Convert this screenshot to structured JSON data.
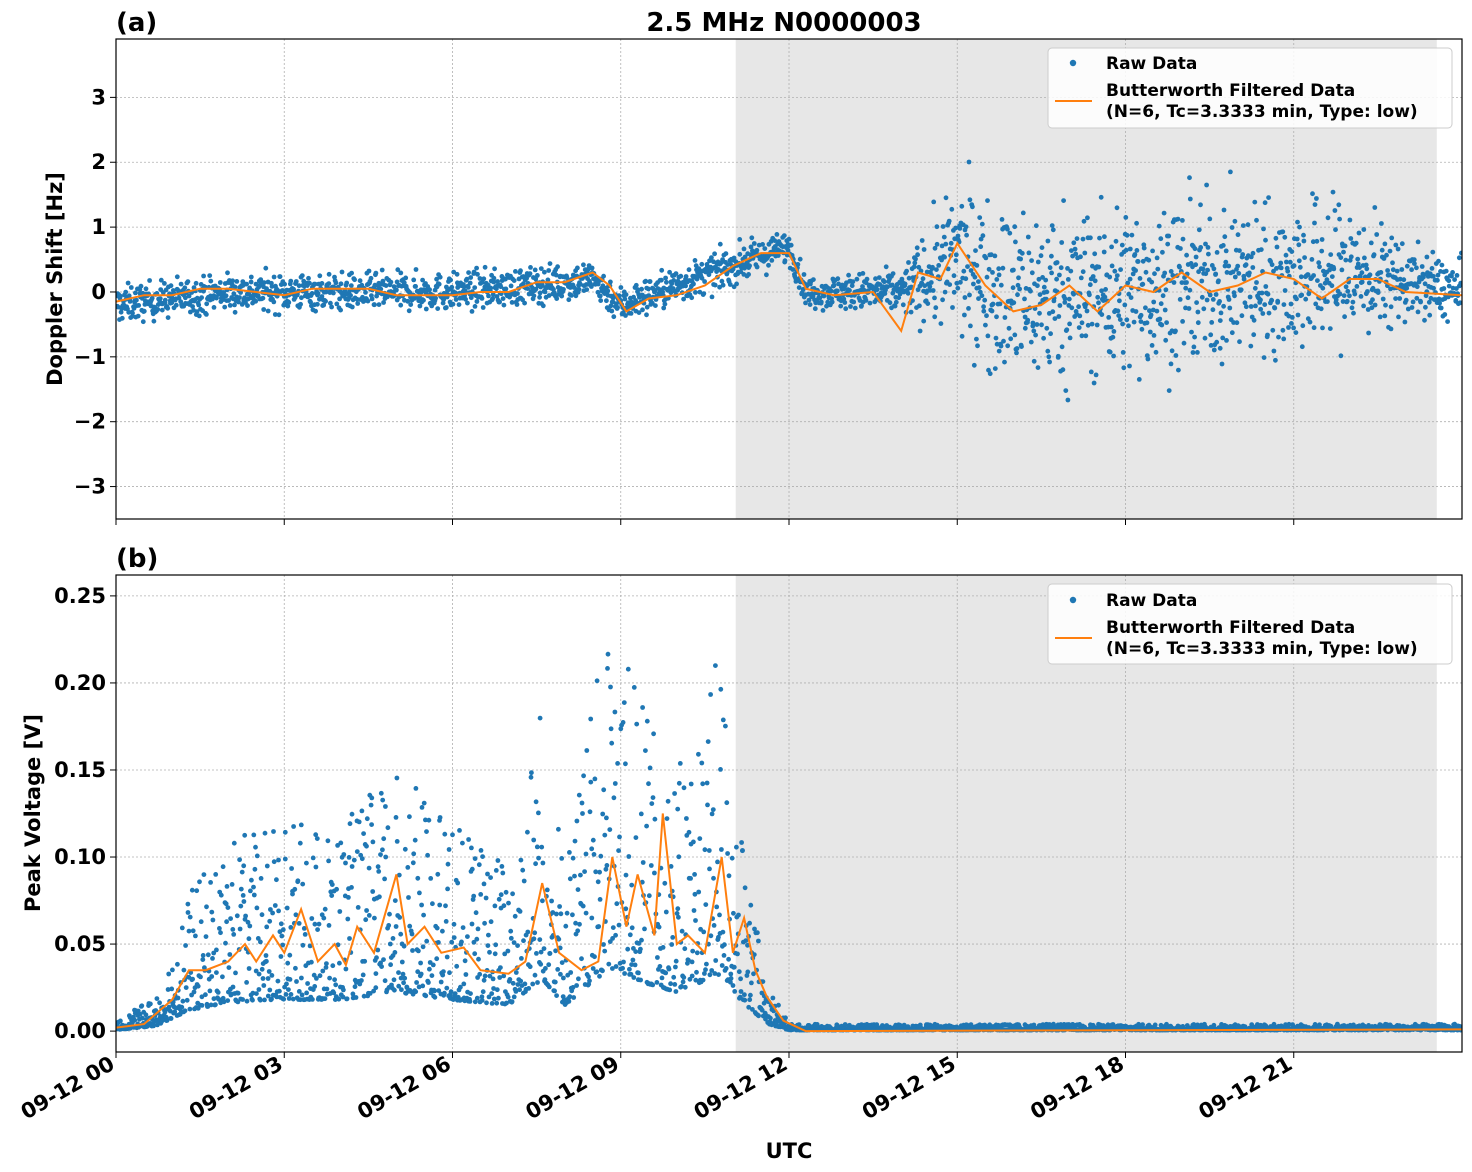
{
  "figure": {
    "title": "2.5 MHz N0000003",
    "xlabel": "UTC",
    "xtick_labels": [
      "09-12 00",
      "09-12 03",
      "09-12 06",
      "09-12 09",
      "09-12 12",
      "09-12 15",
      "09-12 18",
      "09-12 21"
    ],
    "colors": {
      "raw": "#1f77b4",
      "filtered": "#ff7f0e",
      "shade": "#e7e7e7",
      "grid": "#b0b0b0"
    },
    "shaded_interval_hours": [
      11.05,
      23.55
    ]
  },
  "chart_data": [
    {
      "type": "scatter",
      "panel_label": "(a)",
      "title": "2.5 MHz N0000003",
      "xlabel": "",
      "ylabel": "Doppler Shift [Hz]",
      "xlim_hours": [
        0,
        24
      ],
      "ylim": [
        -3.5,
        3.9
      ],
      "yticks": [
        -3,
        -2,
        -1,
        0,
        1,
        2,
        3
      ],
      "ytick_labels": [
        "−3",
        "−2",
        "−1",
        "0",
        "1",
        "2",
        "3"
      ],
      "grid": true,
      "legend": {
        "placement": "top-right",
        "entries": [
          "Raw Data",
          "Butterworth Filtered Data",
          "(N=6, Tc=3.3333 min, Type: low)"
        ]
      },
      "series": [
        {
          "name": "Raw Data",
          "kind": "points",
          "approx_mean_path": [
            [
              0,
              -0.2
            ],
            [
              2,
              0.0
            ],
            [
              4,
              0.0
            ],
            [
              6,
              0.0
            ],
            [
              7.5,
              0.1
            ],
            [
              8.5,
              0.2
            ],
            [
              9,
              -0.2
            ],
            [
              10,
              0.1
            ],
            [
              11,
              0.4
            ],
            [
              12,
              0.7
            ],
            [
              12.3,
              0.0
            ],
            [
              14,
              0.0
            ],
            [
              15,
              0.5
            ],
            [
              16,
              -0.1
            ],
            [
              19,
              0.1
            ],
            [
              22,
              0.3
            ],
            [
              24,
              0.0
            ]
          ],
          "approx_spread_path": [
            [
              0,
              0.25
            ],
            [
              11,
              0.25
            ],
            [
              12.3,
              0.2
            ],
            [
              14,
              0.3
            ],
            [
              15,
              1.0
            ],
            [
              16,
              1.2
            ],
            [
              22,
              1.0
            ],
            [
              23,
              0.5
            ],
            [
              24,
              0.4
            ]
          ]
        },
        {
          "name": "Butterworth Filtered Data",
          "kind": "line",
          "values": [
            [
              0,
              -0.15
            ],
            [
              0.5,
              -0.05
            ],
            [
              1,
              -0.05
            ],
            [
              1.5,
              0.05
            ],
            [
              2,
              0.05
            ],
            [
              2.5,
              0.0
            ],
            [
              3,
              -0.05
            ],
            [
              3.5,
              0.05
            ],
            [
              4,
              0.05
            ],
            [
              4.5,
              0.05
            ],
            [
              5,
              -0.05
            ],
            [
              5.5,
              -0.05
            ],
            [
              6,
              -0.05
            ],
            [
              6.5,
              0.0
            ],
            [
              7,
              0.0
            ],
            [
              7.5,
              0.15
            ],
            [
              8,
              0.15
            ],
            [
              8.5,
              0.3
            ],
            [
              8.8,
              0.1
            ],
            [
              9.1,
              -0.3
            ],
            [
              9.5,
              -0.1
            ],
            [
              10,
              -0.05
            ],
            [
              10.5,
              0.1
            ],
            [
              11,
              0.4
            ],
            [
              11.5,
              0.6
            ],
            [
              12,
              0.6
            ],
            [
              12.3,
              0.05
            ],
            [
              12.8,
              -0.05
            ],
            [
              13.5,
              0.0
            ],
            [
              14,
              -0.6
            ],
            [
              14.3,
              0.3
            ],
            [
              14.7,
              0.2
            ],
            [
              15,
              0.75
            ],
            [
              15.5,
              0.1
            ],
            [
              16,
              -0.3
            ],
            [
              16.5,
              -0.2
            ],
            [
              17,
              0.1
            ],
            [
              17.5,
              -0.3
            ],
            [
              18,
              0.1
            ],
            [
              18.5,
              0.0
            ],
            [
              19,
              0.3
            ],
            [
              19.5,
              0.0
            ],
            [
              20,
              0.1
            ],
            [
              20.5,
              0.3
            ],
            [
              21,
              0.2
            ],
            [
              21.5,
              -0.1
            ],
            [
              22,
              0.2
            ],
            [
              22.5,
              0.2
            ],
            [
              23,
              0.0
            ],
            [
              24,
              -0.05
            ]
          ]
        }
      ]
    },
    {
      "type": "scatter",
      "panel_label": "(b)",
      "title": "",
      "xlabel": "UTC",
      "ylabel": "Peak Voltage [V]",
      "xlim_hours": [
        0,
        24
      ],
      "ylim": [
        -0.012,
        0.262
      ],
      "yticks": [
        0.0,
        0.05,
        0.1,
        0.15,
        0.2,
        0.25
      ],
      "ytick_labels": [
        "0.00",
        "0.05",
        "0.10",
        "0.15",
        "0.20",
        "0.25"
      ],
      "grid": true,
      "legend": {
        "placement": "top-right",
        "entries": [
          "Raw Data",
          "Butterworth Filtered Data",
          "(N=6, Tc=3.3333 min, Type: low)"
        ]
      },
      "series": [
        {
          "name": "Raw Data",
          "kind": "points",
          "approx_upper_envelope": [
            [
              0,
              0.005
            ],
            [
              0.7,
              0.02
            ],
            [
              1.3,
              0.08
            ],
            [
              2,
              0.11
            ],
            [
              3,
              0.12
            ],
            [
              4,
              0.12
            ],
            [
              5,
              0.15
            ],
            [
              6,
              0.12
            ],
            [
              7,
              0.1
            ],
            [
              7.6,
              0.2
            ],
            [
              8,
              0.1
            ],
            [
              8.8,
              0.24
            ],
            [
              9.5,
              0.18
            ],
            [
              10,
              0.15
            ],
            [
              10.8,
              0.22
            ],
            [
              11.2,
              0.1
            ],
            [
              11.6,
              0.03
            ],
            [
              12,
              0.004
            ],
            [
              24,
              0.004
            ]
          ]
        },
        {
          "name": "Butterworth Filtered Data",
          "kind": "line",
          "values": [
            [
              0,
              0.002
            ],
            [
              0.5,
              0.004
            ],
            [
              1,
              0.018
            ],
            [
              1.3,
              0.035
            ],
            [
              1.6,
              0.035
            ],
            [
              2,
              0.04
            ],
            [
              2.3,
              0.05
            ],
            [
              2.5,
              0.04
            ],
            [
              2.8,
              0.055
            ],
            [
              3,
              0.045
            ],
            [
              3.3,
              0.07
            ],
            [
              3.6,
              0.04
            ],
            [
              3.9,
              0.05
            ],
            [
              4.1,
              0.038
            ],
            [
              4.3,
              0.06
            ],
            [
              4.6,
              0.045
            ],
            [
              5,
              0.09
            ],
            [
              5.2,
              0.05
            ],
            [
              5.5,
              0.06
            ],
            [
              5.8,
              0.045
            ],
            [
              6.2,
              0.048
            ],
            [
              6.5,
              0.035
            ],
            [
              7,
              0.033
            ],
            [
              7.3,
              0.04
            ],
            [
              7.6,
              0.085
            ],
            [
              7.9,
              0.045
            ],
            [
              8.3,
              0.035
            ],
            [
              8.6,
              0.04
            ],
            [
              8.85,
              0.1
            ],
            [
              9.1,
              0.06
            ],
            [
              9.3,
              0.09
            ],
            [
              9.6,
              0.055
            ],
            [
              9.75,
              0.125
            ],
            [
              10,
              0.05
            ],
            [
              10.2,
              0.055
            ],
            [
              10.5,
              0.045
            ],
            [
              10.8,
              0.1
            ],
            [
              11,
              0.045
            ],
            [
              11.2,
              0.065
            ],
            [
              11.4,
              0.035
            ],
            [
              11.6,
              0.02
            ],
            [
              11.9,
              0.006
            ],
            [
              12.3,
              0.0
            ],
            [
              24,
              0.001
            ]
          ]
        }
      ]
    }
  ]
}
